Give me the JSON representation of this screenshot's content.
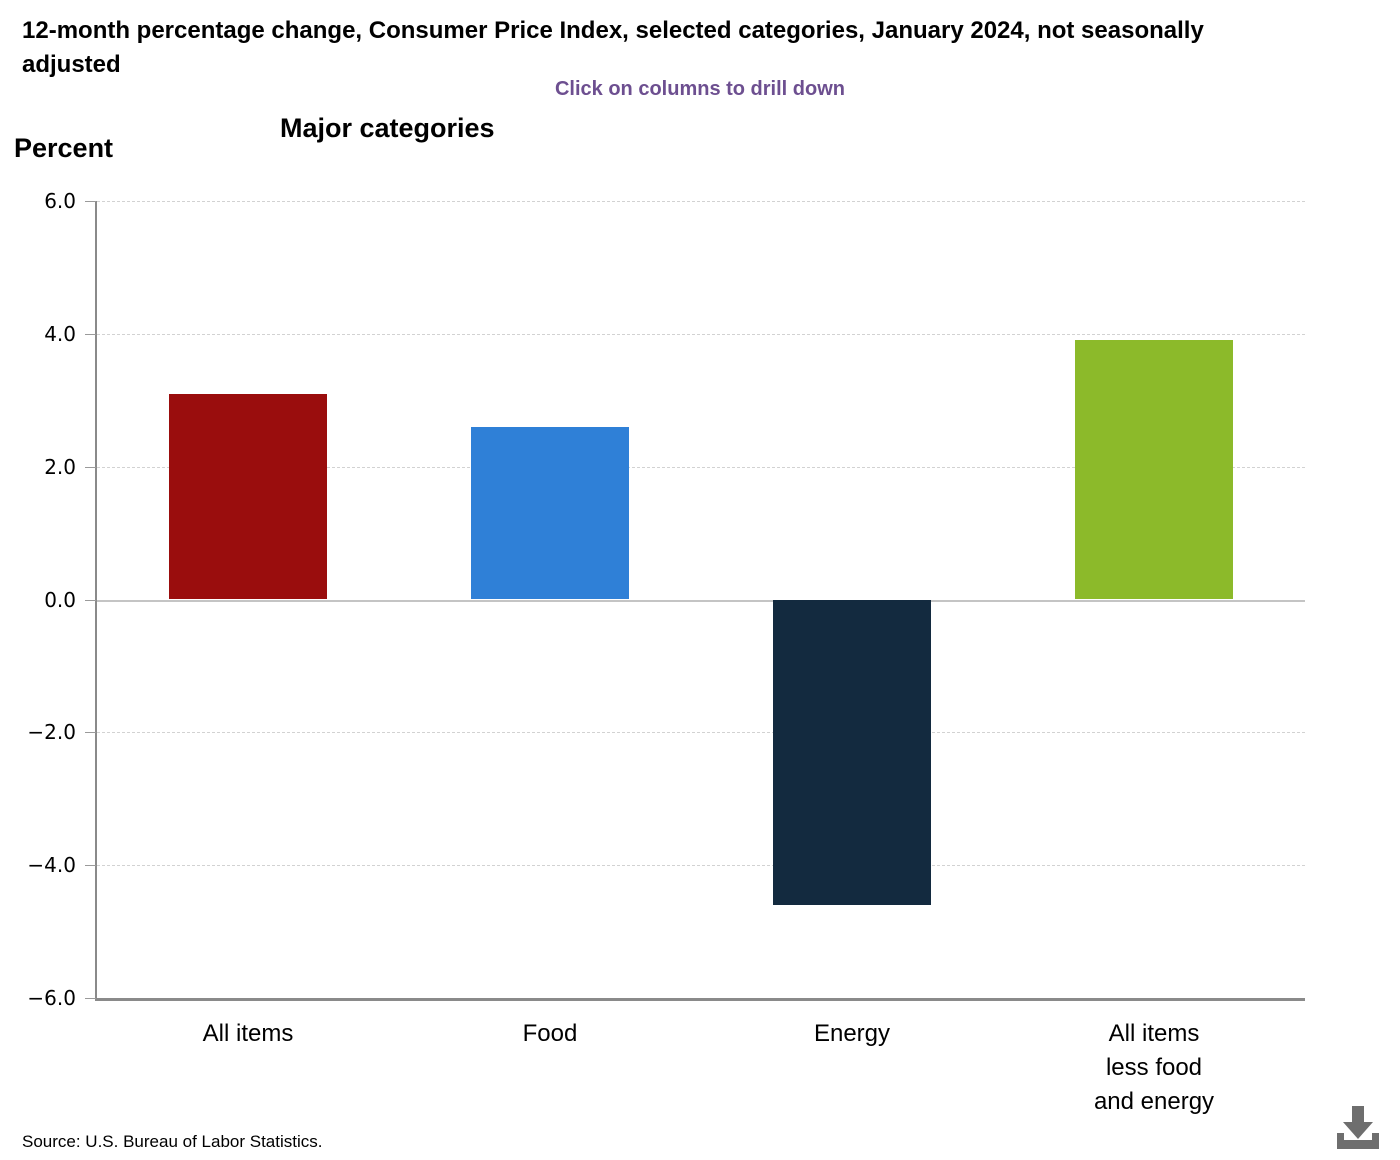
{
  "page": {
    "title": "12-month percentage change, Consumer Price Index, selected categories, January 2024, not seasonally adjusted",
    "drilldown_hint": "Click on columns to drill down",
    "source": "Source: U.S. Bureau of Labor Statistics."
  },
  "chart_data": {
    "type": "bar",
    "title": "Major categories",
    "ylabel": "Percent",
    "xlabel": "",
    "ylim": [
      -6.0,
      6.0
    ],
    "ytick_interval": 2.0,
    "grid": "dashed-horizontal",
    "legend": "none",
    "yticks": [
      {
        "value": 6,
        "label": "6.0"
      },
      {
        "value": 4,
        "label": "4.0"
      },
      {
        "value": 2,
        "label": "2.0"
      },
      {
        "value": 0,
        "label": "0.0"
      },
      {
        "value": -2,
        "label": "−2.0"
      },
      {
        "value": -4,
        "label": "−4.0"
      },
      {
        "value": -6,
        "label": "−6.0"
      }
    ],
    "categories": [
      "All items",
      "Food",
      "Energy",
      "All items\nless food\nand energy"
    ],
    "values": [
      3.1,
      2.6,
      -4.6,
      3.9
    ],
    "bar_colors": [
      "#9a0d0d",
      "#2f80d7",
      "#132a3f",
      "#8cba2a"
    ]
  },
  "icons": {
    "download": "download-icon"
  },
  "colors": {
    "hint_purple": "#6d4f90",
    "axis_gray": "#8a8a8a",
    "zero_line_gray": "#c4c4c4",
    "gridline_gray": "#d2d2d2",
    "download_gray": "#6e6e6e"
  }
}
